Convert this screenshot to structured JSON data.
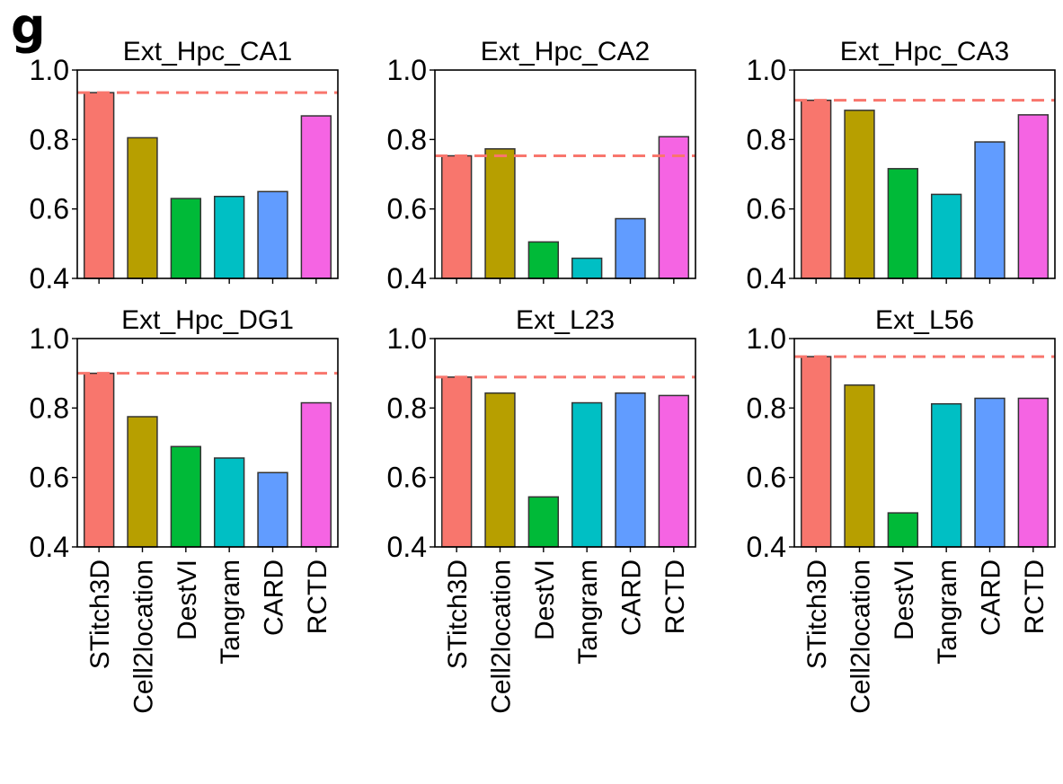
{
  "panel_label": "g",
  "categories": [
    "STitch3D",
    "Cell2location",
    "DestVI",
    "Tangram",
    "CARD",
    "RCTD"
  ],
  "bar_colors": [
    "#F8766D",
    "#B79F00",
    "#00BA38",
    "#00BFC4",
    "#619CFF",
    "#F564E3"
  ],
  "reference_line_color": "#F8766D",
  "chart_data": [
    {
      "type": "bar",
      "title": "Ext_Hpc_CA1",
      "ylim": [
        0.4,
        1.0
      ],
      "yticks": [
        "0.4",
        "0.6",
        "0.8",
        "1.0"
      ],
      "values": [
        0.935,
        0.805,
        0.63,
        0.636,
        0.65,
        0.868
      ],
      "reference_line": 0.935
    },
    {
      "type": "bar",
      "title": "Ext_Hpc_CA2",
      "ylim": [
        0.4,
        1.0
      ],
      "yticks": [
        "0.4",
        "0.6",
        "0.8",
        "1.0"
      ],
      "values": [
        0.753,
        0.773,
        0.505,
        0.458,
        0.572,
        0.808
      ],
      "reference_line": 0.753
    },
    {
      "type": "bar",
      "title": "Ext_Hpc_CA3",
      "ylim": [
        0.4,
        1.0
      ],
      "yticks": [
        "0.4",
        "0.6",
        "0.8",
        "1.0"
      ],
      "values": [
        0.913,
        0.884,
        0.716,
        0.642,
        0.793,
        0.871
      ],
      "reference_line": 0.913
    },
    {
      "type": "bar",
      "title": "Ext_Hpc_DG1",
      "ylim": [
        0.4,
        1.0
      ],
      "yticks": [
        "0.4",
        "0.6",
        "0.8",
        "1.0"
      ],
      "values": [
        0.9,
        0.775,
        0.689,
        0.656,
        0.614,
        0.815
      ],
      "reference_line": 0.9
    },
    {
      "type": "bar",
      "title": "Ext_L23",
      "ylim": [
        0.4,
        1.0
      ],
      "yticks": [
        "0.4",
        "0.6",
        "0.8",
        "1.0"
      ],
      "values": [
        0.889,
        0.843,
        0.544,
        0.815,
        0.843,
        0.836
      ],
      "reference_line": 0.889
    },
    {
      "type": "bar",
      "title": "Ext_L56",
      "ylim": [
        0.4,
        1.0
      ],
      "yticks": [
        "0.4",
        "0.6",
        "0.8",
        "1.0"
      ],
      "values": [
        0.948,
        0.866,
        0.498,
        0.812,
        0.828,
        0.828
      ],
      "reference_line": 0.948
    }
  ]
}
